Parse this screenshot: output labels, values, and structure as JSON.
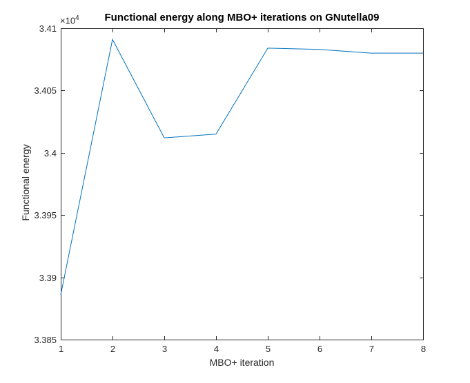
{
  "figure": {
    "background": "#ffffff"
  },
  "chart_data": {
    "type": "line",
    "title": "Functional energy along MBO+ iterations on GNutella09",
    "xlabel": "MBO+ iteration",
    "ylabel": "Functional energy",
    "y_exponent_base": "×10",
    "y_exponent_power": "4",
    "x": [
      1,
      2,
      3,
      4,
      5,
      6,
      7,
      8
    ],
    "y": [
      3.3886,
      3.4091,
      3.4012,
      3.4015,
      3.4084,
      3.4083,
      3.408,
      3.408
    ],
    "y_unit_multiplier": 10000,
    "xlim": [
      1,
      8
    ],
    "ylim": [
      3.385,
      3.41
    ],
    "xticks": [
      1,
      2,
      3,
      4,
      5,
      6,
      7,
      8
    ],
    "xtick_labels": [
      "1",
      "2",
      "3",
      "4",
      "5",
      "6",
      "7",
      "8"
    ],
    "yticks": [
      3.385,
      3.39,
      3.395,
      3.4,
      3.405,
      3.41
    ],
    "ytick_labels": [
      "3.385",
      "3.39",
      "3.395",
      "3.4",
      "3.405",
      "3.41"
    ],
    "line_color": "#0072BD",
    "axis_color": "#262626",
    "title_color": "#000000",
    "grid": false,
    "legend_position": "none"
  }
}
